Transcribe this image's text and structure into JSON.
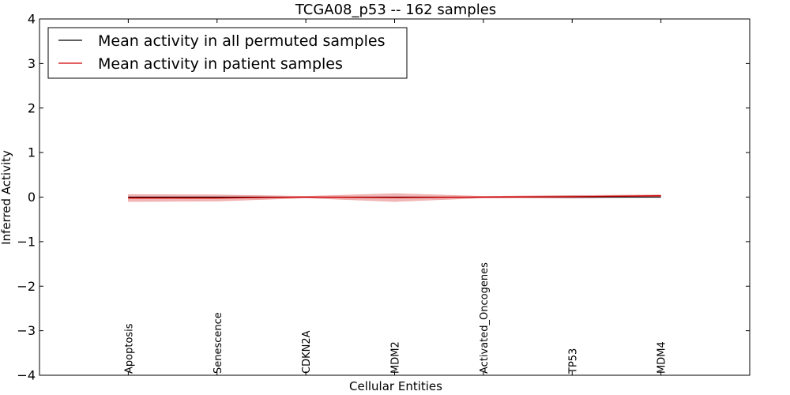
{
  "chart_data": {
    "type": "line",
    "title": "TCGA08_p53 -- 162 samples",
    "xlabel": "Cellular Entities",
    "ylabel": "Inferred Activity",
    "ylim": [
      -4,
      4
    ],
    "yticks": [
      4,
      3,
      2,
      1,
      0,
      -1,
      -2,
      -3,
      -4
    ],
    "ytick_labels": [
      "4",
      "3",
      "2",
      "1",
      "0",
      "−1",
      "−2",
      "−3",
      "−4"
    ],
    "xlim": [
      -1,
      7
    ],
    "categories": [
      "Apoptosis",
      "Senescence",
      "CDKN2A",
      "MDM2",
      "Activated_Oncogenes",
      "TP53",
      "MDM4"
    ],
    "legend_position": "top-left",
    "series": [
      {
        "name": "Mean activity in all permuted samples",
        "color": "#000000",
        "values": [
          0.0,
          0.0,
          0.0,
          0.0,
          0.0,
          0.0,
          0.0
        ],
        "band": [
          0.02,
          0.02,
          0.01,
          0.02,
          0.01,
          0.03,
          0.02
        ],
        "band_color": "#b0b0c0"
      },
      {
        "name": "Mean activity in patient samples",
        "color": "#d00000",
        "values": [
          -0.02,
          -0.02,
          0.0,
          -0.01,
          0.0,
          0.01,
          0.03
        ],
        "band": [
          0.08,
          0.07,
          0.02,
          0.09,
          0.02,
          0.03,
          0.02
        ],
        "band_color": "#e06060"
      }
    ]
  }
}
